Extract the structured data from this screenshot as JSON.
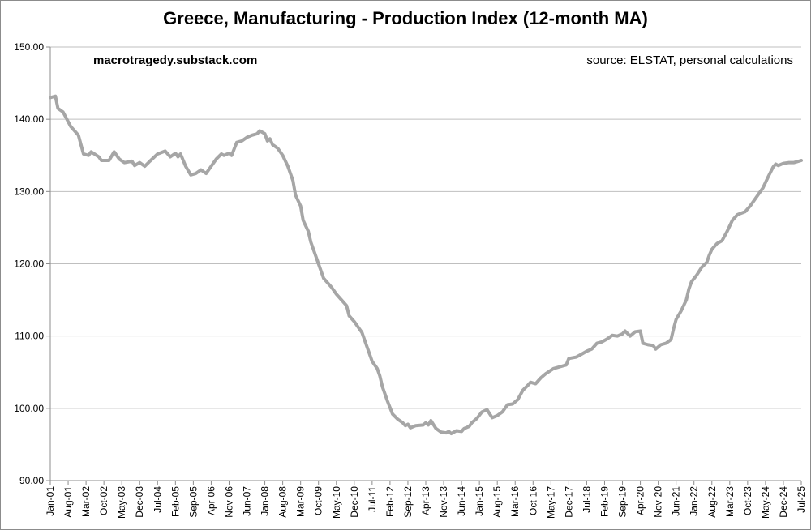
{
  "chart_data": {
    "type": "line",
    "title": "Greece, Manufacturing - Production Index (12-month MA)",
    "watermark": "macrotragedy.substack.com",
    "source": "source: ELSTAT, personal calculations",
    "xlabel": "",
    "ylabel": "",
    "ylim": [
      90,
      150
    ],
    "yticks": [
      "90.00",
      "100.00",
      "110.00",
      "120.00",
      "130.00",
      "140.00",
      "150.00"
    ],
    "grid": true,
    "x_range": [
      "Jan-01",
      "Jul-25"
    ],
    "xticks": [
      "Jan-01",
      "Aug-01",
      "Mar-02",
      "Oct-02",
      "May-03",
      "Dec-03",
      "Jul-04",
      "Feb-05",
      "Sep-05",
      "Apr-06",
      "Nov-06",
      "Jun-07",
      "Jan-08",
      "Aug-08",
      "Mar-09",
      "Oct-09",
      "May-10",
      "Dec-10",
      "Jul-11",
      "Feb-12",
      "Sep-12",
      "Apr-13",
      "Nov-13",
      "Jun-14",
      "Jan-15",
      "Aug-15",
      "Mar-16",
      "Oct-16",
      "May-17",
      "Dec-17",
      "Jul-18",
      "Feb-19",
      "Sep-19",
      "Apr-20",
      "Nov-20",
      "Jun-21",
      "Jan-22",
      "Aug-22",
      "Mar-23",
      "Oct-23",
      "May-24",
      "Dec-24",
      "Jul-25"
    ],
    "series": [
      {
        "name": "Manufacturing Production Index (12-month MA)",
        "color": "#a6a6a6",
        "anchors": [
          {
            "t": "Jan-01",
            "v": 143.0
          },
          {
            "t": "Mar-01",
            "v": 143.2
          },
          {
            "t": "Apr-01",
            "v": 141.5
          },
          {
            "t": "Jun-01",
            "v": 141.0
          },
          {
            "t": "Sep-01",
            "v": 139.0
          },
          {
            "t": "Dec-01",
            "v": 137.8
          },
          {
            "t": "Feb-02",
            "v": 135.2
          },
          {
            "t": "Apr-02",
            "v": 135.0
          },
          {
            "t": "May-02",
            "v": 135.5
          },
          {
            "t": "Aug-02",
            "v": 134.8
          },
          {
            "t": "Sep-02",
            "v": 134.3
          },
          {
            "t": "Dec-02",
            "v": 134.3
          },
          {
            "t": "Feb-03",
            "v": 135.5
          },
          {
            "t": "Apr-03",
            "v": 134.5
          },
          {
            "t": "Jun-03",
            "v": 134.0
          },
          {
            "t": "Sep-03",
            "v": 134.2
          },
          {
            "t": "Oct-03",
            "v": 133.6
          },
          {
            "t": "Dec-03",
            "v": 134.0
          },
          {
            "t": "Feb-04",
            "v": 133.5
          },
          {
            "t": "Apr-04",
            "v": 134.2
          },
          {
            "t": "Jul-04",
            "v": 135.2
          },
          {
            "t": "Oct-04",
            "v": 135.6
          },
          {
            "t": "Dec-04",
            "v": 134.8
          },
          {
            "t": "Feb-05",
            "v": 135.3
          },
          {
            "t": "Mar-05",
            "v": 134.8
          },
          {
            "t": "Apr-05",
            "v": 135.2
          },
          {
            "t": "Jun-05",
            "v": 133.5
          },
          {
            "t": "Aug-05",
            "v": 132.3
          },
          {
            "t": "Oct-05",
            "v": 132.5
          },
          {
            "t": "Dec-05",
            "v": 133.0
          },
          {
            "t": "Feb-06",
            "v": 132.5
          },
          {
            "t": "Apr-06",
            "v": 133.5
          },
          {
            "t": "Jun-06",
            "v": 134.5
          },
          {
            "t": "Aug-06",
            "v": 135.2
          },
          {
            "t": "Sep-06",
            "v": 135.0
          },
          {
            "t": "Nov-06",
            "v": 135.3
          },
          {
            "t": "Dec-06",
            "v": 135.0
          },
          {
            "t": "Feb-07",
            "v": 136.8
          },
          {
            "t": "Apr-07",
            "v": 137.0
          },
          {
            "t": "Jun-07",
            "v": 137.5
          },
          {
            "t": "Aug-07",
            "v": 137.8
          },
          {
            "t": "Oct-07",
            "v": 138.0
          },
          {
            "t": "Nov-07",
            "v": 138.4
          },
          {
            "t": "Jan-08",
            "v": 138.0
          },
          {
            "t": "Feb-08",
            "v": 137.0
          },
          {
            "t": "Mar-08",
            "v": 137.3
          },
          {
            "t": "Apr-08",
            "v": 136.5
          },
          {
            "t": "Jun-08",
            "v": 136.0
          },
          {
            "t": "Aug-08",
            "v": 135.0
          },
          {
            "t": "Oct-08",
            "v": 133.5
          },
          {
            "t": "Dec-08",
            "v": 131.5
          },
          {
            "t": "Jan-09",
            "v": 129.5
          },
          {
            "t": "Mar-09",
            "v": 128.0
          },
          {
            "t": "Apr-09",
            "v": 126.0
          },
          {
            "t": "Jun-09",
            "v": 124.5
          },
          {
            "t": "Jul-09",
            "v": 123.0
          },
          {
            "t": "Sep-09",
            "v": 121.0
          },
          {
            "t": "Nov-09",
            "v": 119.0
          },
          {
            "t": "Dec-09",
            "v": 118.0
          },
          {
            "t": "Mar-10",
            "v": 116.8
          },
          {
            "t": "May-10",
            "v": 115.8
          },
          {
            "t": "Jul-10",
            "v": 115.0
          },
          {
            "t": "Sep-10",
            "v": 114.2
          },
          {
            "t": "Oct-10",
            "v": 112.8
          },
          {
            "t": "Dec-10",
            "v": 112.0
          },
          {
            "t": "Feb-11",
            "v": 111.0
          },
          {
            "t": "Mar-11",
            "v": 110.5
          },
          {
            "t": "Apr-11",
            "v": 109.5
          },
          {
            "t": "Jun-11",
            "v": 107.5
          },
          {
            "t": "Jul-11",
            "v": 106.5
          },
          {
            "t": "Sep-11",
            "v": 105.5
          },
          {
            "t": "Oct-11",
            "v": 104.5
          },
          {
            "t": "Nov-11",
            "v": 103.0
          },
          {
            "t": "Jan-12",
            "v": 101.0
          },
          {
            "t": "Mar-12",
            "v": 99.2
          },
          {
            "t": "May-12",
            "v": 98.5
          },
          {
            "t": "Jul-12",
            "v": 98.0
          },
          {
            "t": "Aug-12",
            "v": 97.6
          },
          {
            "t": "Sep-12",
            "v": 97.8
          },
          {
            "t": "Oct-12",
            "v": 97.3
          },
          {
            "t": "Dec-12",
            "v": 97.6
          },
          {
            "t": "Mar-13",
            "v": 97.7
          },
          {
            "t": "Apr-13",
            "v": 98.0
          },
          {
            "t": "May-13",
            "v": 97.7
          },
          {
            "t": "Jun-13",
            "v": 98.3
          },
          {
            "t": "Aug-13",
            "v": 97.2
          },
          {
            "t": "Oct-13",
            "v": 96.7
          },
          {
            "t": "Dec-13",
            "v": 96.6
          },
          {
            "t": "Jan-14",
            "v": 96.8
          },
          {
            "t": "Feb-14",
            "v": 96.5
          },
          {
            "t": "Apr-14",
            "v": 96.9
          },
          {
            "t": "Jun-14",
            "v": 96.8
          },
          {
            "t": "Jul-14",
            "v": 97.2
          },
          {
            "t": "Sep-14",
            "v": 97.5
          },
          {
            "t": "Oct-14",
            "v": 98.0
          },
          {
            "t": "Dec-14",
            "v": 98.6
          },
          {
            "t": "Feb-15",
            "v": 99.5
          },
          {
            "t": "Apr-15",
            "v": 99.8
          },
          {
            "t": "Jun-15",
            "v": 98.7
          },
          {
            "t": "Aug-15",
            "v": 99.0
          },
          {
            "t": "Oct-15",
            "v": 99.5
          },
          {
            "t": "Dec-15",
            "v": 100.5
          },
          {
            "t": "Feb-16",
            "v": 100.6
          },
          {
            "t": "Apr-16",
            "v": 101.2
          },
          {
            "t": "Jun-16",
            "v": 102.5
          },
          {
            "t": "Aug-16",
            "v": 103.2
          },
          {
            "t": "Sep-16",
            "v": 103.6
          },
          {
            "t": "Nov-16",
            "v": 103.4
          },
          {
            "t": "Jan-17",
            "v": 104.2
          },
          {
            "t": "Mar-17",
            "v": 104.8
          },
          {
            "t": "Jun-17",
            "v": 105.5
          },
          {
            "t": "Sep-17",
            "v": 105.8
          },
          {
            "t": "Nov-17",
            "v": 106.0
          },
          {
            "t": "Dec-17",
            "v": 106.9
          },
          {
            "t": "Mar-18",
            "v": 107.1
          },
          {
            "t": "May-18",
            "v": 107.5
          },
          {
            "t": "Jul-18",
            "v": 107.9
          },
          {
            "t": "Sep-18",
            "v": 108.2
          },
          {
            "t": "Nov-18",
            "v": 109.0
          },
          {
            "t": "Jan-19",
            "v": 109.2
          },
          {
            "t": "Mar-19",
            "v": 109.6
          },
          {
            "t": "May-19",
            "v": 110.1
          },
          {
            "t": "Jul-19",
            "v": 110.0
          },
          {
            "t": "Sep-19",
            "v": 110.3
          },
          {
            "t": "Oct-19",
            "v": 110.7
          },
          {
            "t": "Dec-19",
            "v": 110.0
          },
          {
            "t": "Feb-20",
            "v": 110.6
          },
          {
            "t": "Apr-20",
            "v": 110.7
          },
          {
            "t": "May-20",
            "v": 109.0
          },
          {
            "t": "Jul-20",
            "v": 108.8
          },
          {
            "t": "Sep-20",
            "v": 108.7
          },
          {
            "t": "Oct-20",
            "v": 108.2
          },
          {
            "t": "Dec-20",
            "v": 108.8
          },
          {
            "t": "Feb-21",
            "v": 109.0
          },
          {
            "t": "Apr-21",
            "v": 109.5
          },
          {
            "t": "May-21",
            "v": 111.0
          },
          {
            "t": "Jun-21",
            "v": 112.3
          },
          {
            "t": "Aug-21",
            "v": 113.5
          },
          {
            "t": "Oct-21",
            "v": 115.0
          },
          {
            "t": "Nov-21",
            "v": 116.5
          },
          {
            "t": "Dec-21",
            "v": 117.5
          },
          {
            "t": "Feb-22",
            "v": 118.4
          },
          {
            "t": "Apr-22",
            "v": 119.5
          },
          {
            "t": "Jun-22",
            "v": 120.2
          },
          {
            "t": "Jul-22",
            "v": 121.2
          },
          {
            "t": "Aug-22",
            "v": 122.0
          },
          {
            "t": "Oct-22",
            "v": 122.8
          },
          {
            "t": "Dec-22",
            "v": 123.2
          },
          {
            "t": "Feb-23",
            "v": 124.5
          },
          {
            "t": "Apr-23",
            "v": 126.0
          },
          {
            "t": "Jun-23",
            "v": 126.8
          },
          {
            "t": "Sep-23",
            "v": 127.2
          },
          {
            "t": "Nov-23",
            "v": 128.0
          },
          {
            "t": "Jan-24",
            "v": 129.0
          },
          {
            "t": "Mar-24",
            "v": 130.0
          },
          {
            "t": "Apr-24",
            "v": 130.5
          },
          {
            "t": "Jun-24",
            "v": 132.0
          },
          {
            "t": "Aug-24",
            "v": 133.4
          },
          {
            "t": "Sep-24",
            "v": 133.8
          },
          {
            "t": "Oct-24",
            "v": 133.6
          },
          {
            "t": "Dec-24",
            "v": 133.9
          },
          {
            "t": "Feb-25",
            "v": 134.0
          },
          {
            "t": "Apr-25",
            "v": 134.0
          },
          {
            "t": "May-25",
            "v": 134.1
          },
          {
            "t": "Jul-25",
            "v": 134.3
          }
        ]
      }
    ]
  }
}
